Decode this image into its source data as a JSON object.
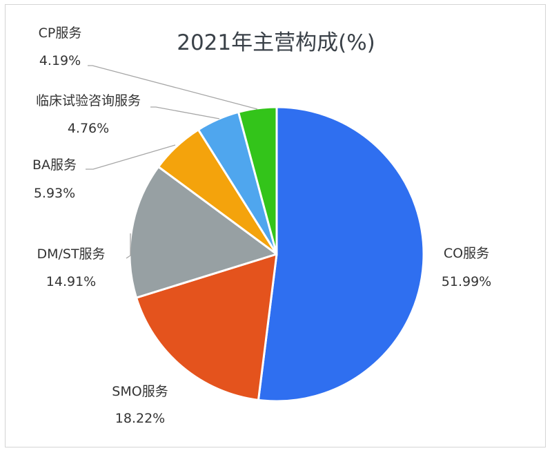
{
  "chart_data": {
    "type": "pie",
    "title": "2021年主营构成(%)",
    "categories": [
      "CO服务",
      "SMO服务",
      "DM/ST服务",
      "BA服务",
      "临床试验咨询服务",
      "CP服务"
    ],
    "values": [
      51.99,
      18.22,
      14.91,
      5.93,
      4.76,
      4.19
    ],
    "value_labels": [
      "51.99%",
      "18.22%",
      "14.91%",
      "5.93%",
      "4.76%",
      "4.19%"
    ],
    "colors": [
      "#2f6ff0",
      "#e4531d",
      "#97a0a3",
      "#f4a30c",
      "#4fa6ee",
      "#33c41a"
    ],
    "start": "12 o'clock",
    "direction": "clockwise",
    "legend": "none"
  }
}
